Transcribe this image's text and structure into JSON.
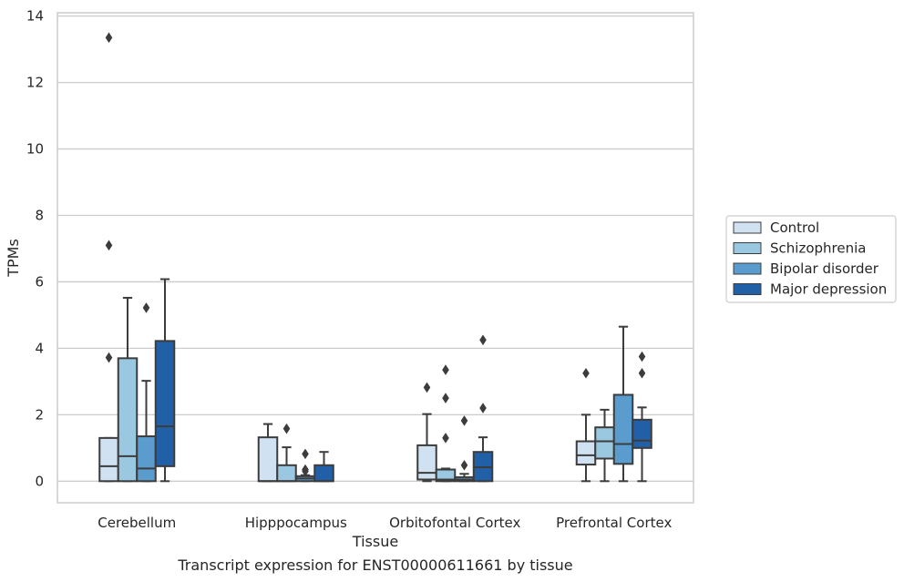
{
  "chart_data": {
    "type": "box",
    "xlabel": "Tissue",
    "ylabel": "TPMs",
    "caption": "Transcript expression for ENST00000611661 by tissue",
    "ylim": [
      -0.65,
      14.1
    ],
    "yticks": [
      0,
      2,
      4,
      6,
      8,
      10,
      12,
      14
    ],
    "ytick_labels": [
      "0",
      "2",
      "4",
      "6",
      "8",
      "10",
      "12",
      "14"
    ],
    "grid": true,
    "legend_position": "right",
    "categories": [
      "Cerebellum",
      "Hipppocampus",
      "Orbitofontal Cortex",
      "Prefrontal Cortex"
    ],
    "series": [
      {
        "name": "Control",
        "color": "#d0e1f2",
        "boxes": [
          {
            "q1": 0,
            "median": 0.45,
            "q3": 1.3,
            "whisker_low": 0,
            "whisker_high": 1.3,
            "outliers": [
              3.72,
              7.1,
              13.35
            ]
          },
          {
            "q1": 0,
            "median": 0,
            "q3": 1.32,
            "whisker_low": 0,
            "whisker_high": 1.72,
            "outliers": []
          },
          {
            "q1": 0.05,
            "median": 0.25,
            "q3": 1.08,
            "whisker_low": 0,
            "whisker_high": 2.02,
            "outliers": [
              2.82
            ]
          },
          {
            "q1": 0.5,
            "median": 0.78,
            "q3": 1.2,
            "whisker_low": 0,
            "whisker_high": 2.0,
            "outliers": [
              3.25
            ]
          }
        ]
      },
      {
        "name": "Schizophrenia",
        "color": "#9ac8e0",
        "boxes": [
          {
            "q1": 0,
            "median": 0.75,
            "q3": 3.7,
            "whisker_low": 0,
            "whisker_high": 5.52,
            "outliers": []
          },
          {
            "q1": 0,
            "median": 0,
            "q3": 0.48,
            "whisker_low": 0,
            "whisker_high": 1.02,
            "outliers": [
              1.58
            ]
          },
          {
            "q1": 0,
            "median": 0.05,
            "q3": 0.35,
            "whisker_low": 0,
            "whisker_high": 0.38,
            "outliers": [
              1.3,
              2.5,
              3.35
            ]
          },
          {
            "q1": 0.68,
            "median": 1.2,
            "q3": 1.62,
            "whisker_low": 0,
            "whisker_high": 2.15,
            "outliers": []
          }
        ]
      },
      {
        "name": "Bipolar disorder",
        "color": "#5a9cce",
        "boxes": [
          {
            "q1": 0,
            "median": 0.38,
            "q3": 1.35,
            "whisker_low": 0,
            "whisker_high": 3.02,
            "outliers": [
              5.22
            ]
          },
          {
            "q1": 0,
            "median": 0.08,
            "q3": 0.15,
            "whisker_low": 0,
            "whisker_high": 0.18,
            "outliers": [
              0.3,
              0.35,
              0.82
            ]
          },
          {
            "q1": 0,
            "median": 0.05,
            "q3": 0.12,
            "whisker_low": 0,
            "whisker_high": 0.22,
            "outliers": [
              0.48,
              1.82
            ]
          },
          {
            "q1": 0.52,
            "median": 1.12,
            "q3": 2.6,
            "whisker_low": 0,
            "whisker_high": 4.65,
            "outliers": []
          }
        ]
      },
      {
        "name": "Major depression",
        "color": "#2160a7",
        "boxes": [
          {
            "q1": 0.45,
            "median": 1.65,
            "q3": 4.22,
            "whisker_low": 0,
            "whisker_high": 6.08,
            "outliers": []
          },
          {
            "q1": 0,
            "median": 0,
            "q3": 0.48,
            "whisker_low": 0,
            "whisker_high": 0.88,
            "outliers": []
          },
          {
            "q1": 0,
            "median": 0.42,
            "q3": 0.88,
            "whisker_low": 0,
            "whisker_high": 1.32,
            "outliers": [
              2.2,
              4.25
            ]
          },
          {
            "q1": 1.0,
            "median": 1.22,
            "q3": 1.85,
            "whisker_low": 0,
            "whisker_high": 2.22,
            "outliers": [
              3.25,
              3.75
            ]
          }
        ]
      }
    ]
  }
}
